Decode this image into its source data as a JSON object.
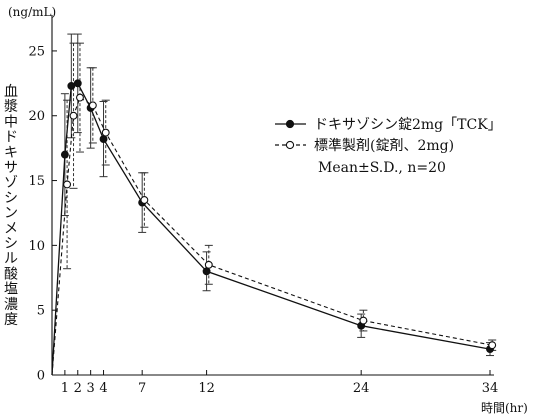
{
  "chart_data": {
    "type": "line",
    "ylabel": "血漿中ドキサゾシンメシル酸塩濃度",
    "yunit": "(ng/mL)",
    "xlabel": "時間(hr)",
    "xlim": [
      0,
      34
    ],
    "ylim": [
      0,
      27
    ],
    "xticks": [
      1,
      2,
      3,
      4,
      7,
      12,
      24,
      34
    ],
    "yticks": [
      0,
      5,
      10,
      15,
      20,
      25
    ],
    "series": [
      {
        "name": "ドキサゾシン錠2mg「TCK」",
        "marker": "filled-circle",
        "line_style": "solid",
        "x": [
          0,
          1,
          1.5,
          2,
          3,
          4,
          7,
          12,
          24,
          34
        ],
        "y": [
          0,
          17.0,
          22.3,
          22.5,
          20.6,
          18.2,
          13.3,
          8.0,
          3.8,
          2.0
        ],
        "sd": [
          0,
          4.7,
          4.0,
          3.8,
          3.1,
          2.9,
          2.3,
          1.5,
          0.9,
          0.5
        ]
      },
      {
        "name": "標準製剤(錠剤、2mg)",
        "marker": "open-circle",
        "line_style": "dashed",
        "x": [
          0,
          1,
          1.5,
          2,
          3,
          4,
          7,
          12,
          24,
          34
        ],
        "y": [
          0,
          14.7,
          20.0,
          21.4,
          20.8,
          18.7,
          13.5,
          8.5,
          4.2,
          2.3
        ],
        "sd": [
          0,
          6.5,
          5.6,
          4.2,
          2.9,
          2.5,
          2.1,
          1.5,
          0.8,
          0.4
        ]
      }
    ],
    "annotation": "Mean±S.D., n=20",
    "legend_position": "right"
  }
}
